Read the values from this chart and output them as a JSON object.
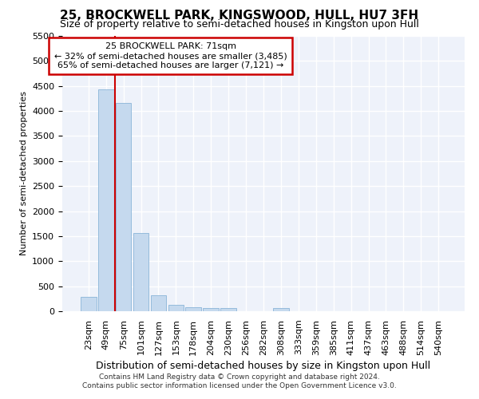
{
  "title": "25, BROCKWELL PARK, KINGSWOOD, HULL, HU7 3FH",
  "subtitle": "Size of property relative to semi-detached houses in Kingston upon Hull",
  "xlabel": "Distribution of semi-detached houses by size in Kingston upon Hull",
  "ylabel": "Number of semi-detached properties",
  "footer_line1": "Contains HM Land Registry data © Crown copyright and database right 2024.",
  "footer_line2": "Contains public sector information licensed under the Open Government Licence v3.0.",
  "annotation_title": "25 BROCKWELL PARK: 71sqm",
  "annotation_line1": "← 32% of semi-detached houses are smaller (3,485)",
  "annotation_line2": "65% of semi-detached houses are larger (7,121) →",
  "bar_color": "#c5d9ee",
  "bar_edge_color": "#8ab4d8",
  "vline_color": "#cc0000",
  "background_color": "#eef2fa",
  "grid_color": "#ffffff",
  "categories": [
    "23sqm",
    "49sqm",
    "75sqm",
    "101sqm",
    "127sqm",
    "153sqm",
    "178sqm",
    "204sqm",
    "230sqm",
    "256sqm",
    "282sqm",
    "308sqm",
    "333sqm",
    "359sqm",
    "385sqm",
    "411sqm",
    "437sqm",
    "463sqm",
    "488sqm",
    "514sqm",
    "540sqm"
  ],
  "values": [
    290,
    4430,
    4160,
    1560,
    320,
    130,
    75,
    65,
    60,
    0,
    0,
    60,
    0,
    0,
    0,
    0,
    0,
    0,
    0,
    0,
    0
  ],
  "ylim": [
    0,
    5500
  ],
  "yticks": [
    0,
    500,
    1000,
    1500,
    2000,
    2500,
    3000,
    3500,
    4000,
    4500,
    5000,
    5500
  ],
  "vline_x": 1.5,
  "title_fontsize": 11,
  "subtitle_fontsize": 9,
  "ylabel_fontsize": 8,
  "xlabel_fontsize": 9,
  "tick_fontsize": 8,
  "footer_fontsize": 6.5
}
